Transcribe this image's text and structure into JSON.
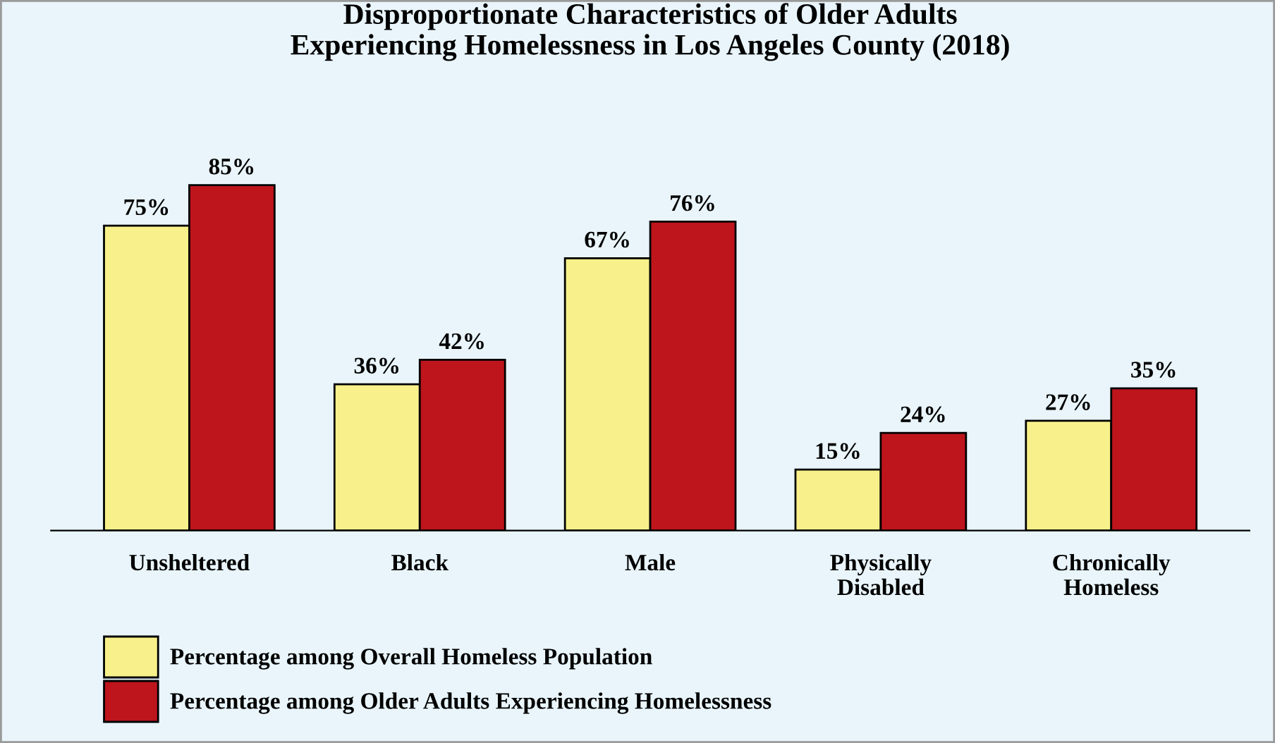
{
  "chart_data": {
    "type": "bar",
    "title": "Disproportionate Characteristics of Older Adults\nExperiencing Homelessness in Los Angeles County (2018)",
    "categories": [
      "Unsheltered",
      "Black",
      "Male",
      "Physically\nDisabled",
      "Chronically\nHomeless"
    ],
    "series": [
      {
        "name": "Percentage among Overall Homeless Population",
        "color": "#f8f18b",
        "values": [
          75,
          36,
          67,
          15,
          27
        ],
        "value_labels": [
          "75%",
          "36%",
          "67%",
          "15%",
          "27%"
        ]
      },
      {
        "name": "Percentage among Older Adults Experiencing Homelessness",
        "color": "#be151c",
        "values": [
          85,
          42,
          76,
          24,
          35
        ],
        "value_labels": [
          "85%",
          "42%",
          "76%",
          "24%",
          "35%"
        ]
      }
    ],
    "legend": "bottom",
    "grid": false
  }
}
